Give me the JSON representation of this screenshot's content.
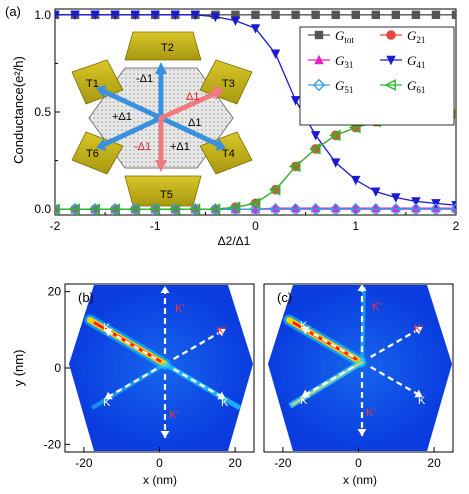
{
  "chart_data": [
    {
      "type": "line",
      "panel_label": "(a)",
      "xlabel": "Δ2/Δ1",
      "ylabel": "Conductance(e²/h)",
      "xlim": [
        -2,
        2
      ],
      "ylim": [
        -0.03,
        1.03
      ],
      "xticks": [
        "-2",
        "-1",
        "0",
        "1",
        "2"
      ],
      "yticks": [
        "0.0",
        "0.5",
        "1.0"
      ],
      "xtick_values": [
        -2,
        -1,
        0,
        1,
        2
      ],
      "ytick_values": [
        0,
        0.5,
        1
      ],
      "legend_position": "top-right",
      "x": [
        -2.0,
        -1.8,
        -1.6,
        -1.4,
        -1.2,
        -1.0,
        -0.8,
        -0.6,
        -0.4,
        -0.2,
        0.0,
        0.2,
        0.4,
        0.6,
        0.8,
        1.0,
        1.2,
        1.4,
        1.6,
        1.8,
        2.0
      ],
      "series": [
        {
          "name": "G",
          "sub": "tot",
          "color": "#555555",
          "marker": "square",
          "values": [
            1,
            1,
            1,
            1,
            1,
            1,
            1,
            1,
            1,
            1,
            1,
            1,
            1,
            1,
            1,
            1,
            1,
            1,
            1,
            1,
            1
          ]
        },
        {
          "name": "G",
          "sub": "21",
          "color": "#e8443a",
          "marker": "circle",
          "values": [
            0,
            0,
            0,
            0,
            0,
            0,
            0,
            0,
            0,
            0.01,
            0.03,
            0.1,
            0.22,
            0.31,
            0.38,
            0.42,
            0.45,
            0.47,
            0.48,
            0.485,
            0.49
          ]
        },
        {
          "name": "G",
          "sub": "31",
          "color": "#e61ec8",
          "marker": "triangle-up",
          "values": [
            0,
            0,
            0,
            0,
            0,
            0,
            0,
            0,
            0,
            0,
            0,
            0.005,
            0.005,
            0.005,
            0.005,
            0.005,
            0.005,
            0.005,
            0.005,
            0.005,
            0.005
          ]
        },
        {
          "name": "G",
          "sub": "41",
          "color": "#1a1ad0",
          "marker": "triangle-down",
          "values": [
            1,
            1,
            1,
            1,
            1,
            1,
            1,
            1,
            0.99,
            0.97,
            0.93,
            0.8,
            0.56,
            0.38,
            0.24,
            0.15,
            0.09,
            0.06,
            0.04,
            0.03,
            0.02
          ]
        },
        {
          "name": "G",
          "sub": "51",
          "color": "#3a9ee8",
          "marker": "diamond",
          "values": [
            0,
            0,
            0,
            0,
            0,
            0,
            0,
            0,
            0,
            0,
            0,
            0,
            0,
            0,
            0,
            0,
            0,
            0,
            0,
            0,
            0
          ]
        },
        {
          "name": "G",
          "sub": "61",
          "color": "#2eb82e",
          "marker": "triangle-left",
          "values": [
            0,
            0,
            0,
            0,
            0,
            0,
            0,
            0,
            0,
            0.01,
            0.03,
            0.1,
            0.22,
            0.31,
            0.38,
            0.42,
            0.45,
            0.47,
            0.48,
            0.485,
            0.49
          ]
        }
      ]
    },
    {
      "type": "heatmap",
      "panel_label": "(b)",
      "xlabel": "x (nm)",
      "ylabel": "y (nm)",
      "xlim": [
        -25,
        25
      ],
      "ylim": [
        -22,
        22
      ],
      "xticks": [
        "-20",
        "0",
        "20"
      ],
      "yticks": [
        "-20",
        "0",
        "20"
      ],
      "xtick_values": [
        -20,
        0,
        20
      ],
      "ytick_values": [
        -20,
        0,
        20
      ],
      "annotations": [
        "K",
        "K",
        "K",
        "K'",
        "K'",
        "K'"
      ]
    },
    {
      "type": "heatmap",
      "panel_label": "(c)",
      "xlabel": "x (nm)",
      "ylabel": "",
      "xlim": [
        -25,
        25
      ],
      "ylim": [
        -22,
        22
      ],
      "xticks": [
        "-20",
        "0",
        "20"
      ],
      "xtick_values": [
        -20,
        0,
        20
      ],
      "annotations": [
        "K",
        "K",
        "K",
        "K'",
        "K'",
        "K'"
      ]
    }
  ],
  "inset": {
    "terminals": [
      "T1",
      "T2",
      "T3",
      "T4",
      "T5",
      "T6"
    ],
    "delta_labels": [
      "-Δ1",
      "+Δ1",
      "Δ1",
      "-Δ1",
      "+Δ1",
      "Δ1"
    ]
  }
}
